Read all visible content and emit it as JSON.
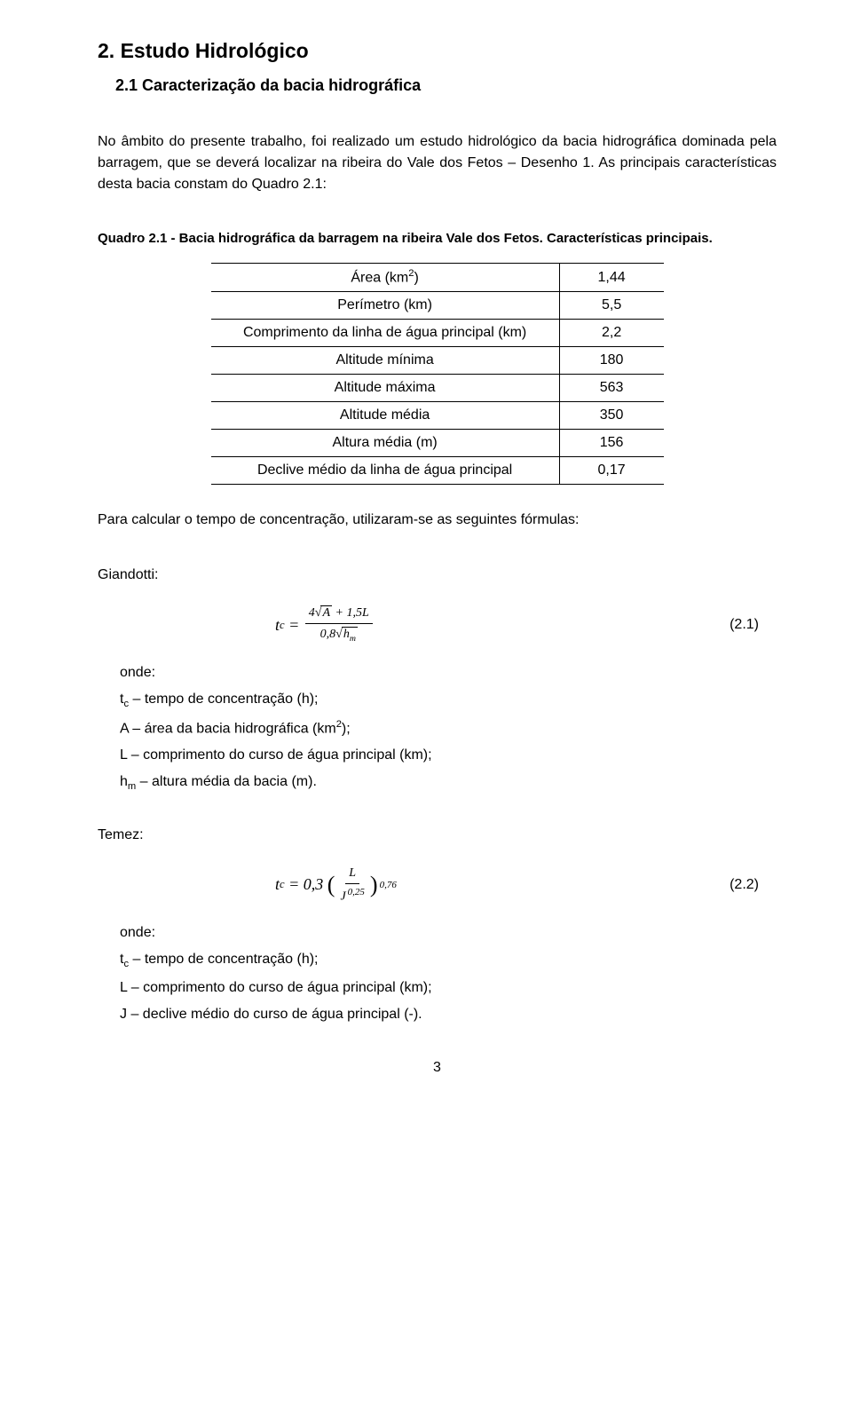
{
  "headings": {
    "h1": "2. Estudo Hidrológico",
    "h2": "2.1 Caracterização da bacia hidrográfica"
  },
  "paragraphs": {
    "intro": "No âmbito do presente trabalho, foi realizado um estudo hidrológico da bacia hidrográfica dominada pela barragem, que se deverá localizar na ribeira do Vale dos Fetos – Desenho 1. As principais características desta bacia constam do Quadro 2.1:",
    "after_table": "Para calcular o tempo de concentração, utilizaram-se as seguintes fórmulas:"
  },
  "table_caption": "Quadro 2.1 - Bacia hidrográfica da barragem na ribeira Vale dos Fetos. Características principais.",
  "table": {
    "rows": [
      {
        "label_pre": "Área (km",
        "label_sup": "2",
        "label_post": ")",
        "value": "1,44"
      },
      {
        "label": "Perímetro (km)",
        "value": "5,5"
      },
      {
        "label": "Comprimento da linha de água principal (km)",
        "value": "2,2"
      },
      {
        "label": "Altitude mínima",
        "value": "180"
      },
      {
        "label": "Altitude máxima",
        "value": "563"
      },
      {
        "label": "Altitude média",
        "value": "350"
      },
      {
        "label": "Altura média (m)",
        "value": "156"
      },
      {
        "label": "Declive médio da linha de água principal",
        "value": "0,17"
      }
    ]
  },
  "giandotti": {
    "title": "Giandotti:",
    "eq_number": "(2.1)",
    "onde": "onde:",
    "defs": [
      {
        "pre": "t",
        "sub": "c",
        "post": " – tempo de concentração (h);"
      },
      {
        "pre": "A – área da bacia hidrográfica (km",
        "sup": "2",
        "post": ");"
      },
      {
        "text": "L – comprimento do curso de água principal (km);"
      },
      {
        "pre": "h",
        "sub": "m",
        "post": " – altura média da bacia (m)."
      }
    ]
  },
  "temez": {
    "title": "Temez:",
    "eq_number": "(2.2)",
    "onde": "onde:",
    "defs": [
      {
        "pre": "t",
        "sub": "c",
        "post": " – tempo de concentração (h);"
      },
      {
        "text": "L – comprimento do curso de água principal (km);"
      },
      {
        "text": "J – declive médio do curso de água principal (-)."
      }
    ]
  },
  "page_number": "3",
  "colors": {
    "text": "#000000",
    "background": "#ffffff",
    "border": "#000000"
  },
  "typography": {
    "body_family": "Arial",
    "body_size_pt": 12,
    "h1_size_pt": 17,
    "h2_size_pt": 14,
    "equation_family": "Times New Roman"
  },
  "equations": {
    "giandotti": {
      "lhs_var": "t",
      "lhs_sub": "c",
      "numerator_coef1": "4",
      "numerator_sqrt": "A",
      "numerator_plus": " + 1,5L",
      "denom_coef": "0,8",
      "denom_sqrt_var": "h",
      "denom_sqrt_sub": "m"
    },
    "temez": {
      "lhs_var": "t",
      "lhs_sub": "c",
      "coef": "0,3",
      "frac_num": "L",
      "frac_den_var": "J",
      "frac_den_exp": "0,25",
      "outer_exp": "0,76"
    }
  }
}
